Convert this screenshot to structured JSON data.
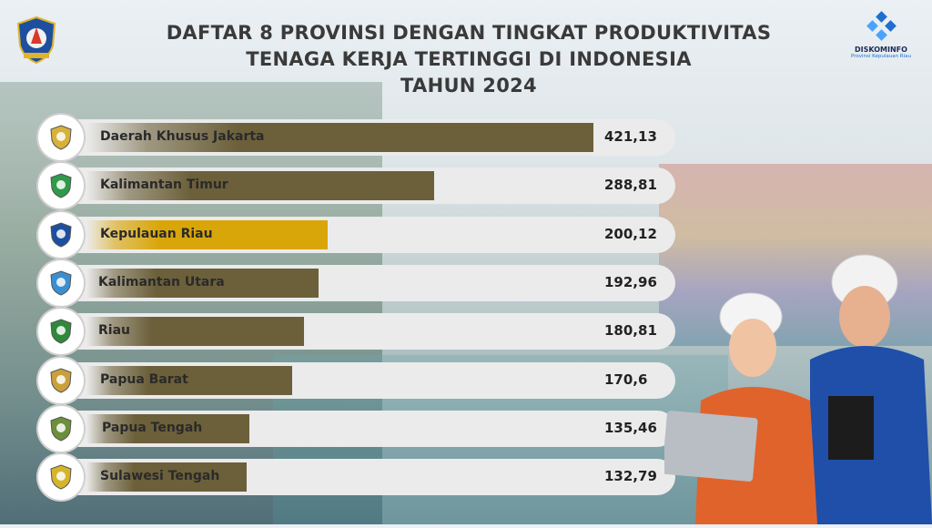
{
  "header": {
    "line1": "DAFTAR 8 PROVINSI DENGAN TINGKAT PRODUKTIVITAS",
    "line2": "TENAGA KERJA TERTINGGI DI INDONESIA",
    "line3": "TAHUN 2024"
  },
  "brand": {
    "name": "DISKOMINFO",
    "subtitle": "Provinsi Kepulauan Riau"
  },
  "colors": {
    "highlight": "#d9a60a",
    "bar": "#6c603a",
    "row_background": "#ebebeb"
  },
  "chart_data": {
    "type": "bar",
    "orientation": "horizontal",
    "categories": [
      "Daerah Khusus Jakarta",
      "Kalimantan Timur",
      "Kepulauan Riau",
      "Kalimantan Utara",
      "Riau",
      "Papua Barat",
      "Papua Tengah",
      "Sulawesi Tengah"
    ],
    "values": [
      421.13,
      288.81,
      200.12,
      192.96,
      180.81,
      170.6,
      135.46,
      132.79
    ],
    "value_labels": [
      "421,13",
      "288,81",
      "200,12",
      "192,96",
      "180,81",
      "170,6",
      "135,46",
      "132,79"
    ],
    "highlight": "Kepulauan Riau",
    "xlim": [
      0,
      421.13
    ],
    "grid": false,
    "legend": "none"
  }
}
